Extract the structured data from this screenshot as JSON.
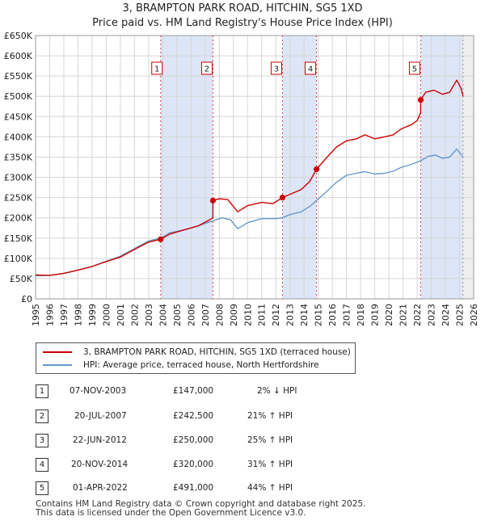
{
  "chart_data": {
    "type": "line",
    "title": "3, BRAMPTON PARK ROAD, HITCHIN, SG5 1XD",
    "subtitle": "Price paid vs. HM Land Registry's House Price Index (HPI)",
    "xlabel": "",
    "ylabel": "",
    "xlim": [
      1995,
      2026
    ],
    "ylim": [
      0,
      650000
    ],
    "x_ticks": [
      "1995",
      "1996",
      "1997",
      "1998",
      "1999",
      "2000",
      "2001",
      "2002",
      "2003",
      "2004",
      "2005",
      "2006",
      "2007",
      "2008",
      "2009",
      "2010",
      "2011",
      "2012",
      "2013",
      "2014",
      "2015",
      "2016",
      "2017",
      "2018",
      "2019",
      "2020",
      "2021",
      "2022",
      "2023",
      "2024",
      "2025",
      "2026"
    ],
    "y_ticks": [
      {
        "value": 0,
        "label": "£0"
      },
      {
        "value": 50000,
        "label": "£50K"
      },
      {
        "value": 100000,
        "label": "£100K"
      },
      {
        "value": 150000,
        "label": "£150K"
      },
      {
        "value": 200000,
        "label": "£200K"
      },
      {
        "value": 250000,
        "label": "£250K"
      },
      {
        "value": 300000,
        "label": "£300K"
      },
      {
        "value": 350000,
        "label": "£350K"
      },
      {
        "value": 400000,
        "label": "£400K"
      },
      {
        "value": 450000,
        "label": "£450K"
      },
      {
        "value": 500000,
        "label": "£500K"
      },
      {
        "value": 550000,
        "label": "£550K"
      },
      {
        "value": 600000,
        "label": "£600K"
      },
      {
        "value": 650000,
        "label": "£650K"
      }
    ],
    "grid": true,
    "future_shade_from": 2025.25,
    "series": [
      {
        "name": "3, BRAMPTON PARK ROAD, HITCHIN, SG5 1XD (terraced house)",
        "color": "#cc0000",
        "points": [
          [
            1995,
            59000
          ],
          [
            1996,
            58000
          ],
          [
            1997,
            63000
          ],
          [
            1998,
            71000
          ],
          [
            1999,
            80000
          ],
          [
            2000,
            92000
          ],
          [
            2001,
            103000
          ],
          [
            2002,
            122000
          ],
          [
            2003,
            140000
          ],
          [
            2003.85,
            147000
          ],
          [
            2004.5,
            160000
          ],
          [
            2005.5,
            170000
          ],
          [
            2006.5,
            180000
          ],
          [
            2007.3,
            195000
          ],
          [
            2007.55,
            200000
          ],
          [
            2007.55,
            242500
          ],
          [
            2008,
            247000
          ],
          [
            2008.6,
            245000
          ],
          [
            2009.3,
            215000
          ],
          [
            2010,
            230000
          ],
          [
            2011,
            238000
          ],
          [
            2011.8,
            235000
          ],
          [
            2012.47,
            250000
          ],
          [
            2013,
            258000
          ],
          [
            2013.8,
            270000
          ],
          [
            2014.4,
            290000
          ],
          [
            2014.88,
            320000
          ],
          [
            2015.5,
            345000
          ],
          [
            2016.3,
            375000
          ],
          [
            2017,
            390000
          ],
          [
            2017.7,
            395000
          ],
          [
            2018.3,
            405000
          ],
          [
            2019,
            395000
          ],
          [
            2019.7,
            400000
          ],
          [
            2020.3,
            405000
          ],
          [
            2020.9,
            420000
          ],
          [
            2021.6,
            430000
          ],
          [
            2022,
            440000
          ],
          [
            2022.25,
            460000
          ],
          [
            2022.25,
            491000
          ],
          [
            2022.6,
            510000
          ],
          [
            2023.2,
            515000
          ],
          [
            2023.8,
            505000
          ],
          [
            2024.3,
            510000
          ],
          [
            2024.8,
            540000
          ],
          [
            2025.1,
            520000
          ],
          [
            2025.25,
            500000
          ]
        ]
      },
      {
        "name": "HPI: Average price, terraced house, North Hertfordshire",
        "color": "#6699cc",
        "points": [
          [
            1995,
            57000
          ],
          [
            1996,
            58000
          ],
          [
            1997,
            63000
          ],
          [
            1998,
            71000
          ],
          [
            1999,
            80000
          ],
          [
            2000,
            93000
          ],
          [
            2001,
            105000
          ],
          [
            2002,
            124000
          ],
          [
            2003,
            143000
          ],
          [
            2003.85,
            150000
          ],
          [
            2004.5,
            163000
          ],
          [
            2005.5,
            170000
          ],
          [
            2006.5,
            180000
          ],
          [
            2007.5,
            192000
          ],
          [
            2008.2,
            200000
          ],
          [
            2008.8,
            195000
          ],
          [
            2009.3,
            173000
          ],
          [
            2010,
            188000
          ],
          [
            2011,
            198000
          ],
          [
            2012,
            198000
          ],
          [
            2012.47,
            200000
          ],
          [
            2013,
            208000
          ],
          [
            2013.8,
            215000
          ],
          [
            2014.4,
            228000
          ],
          [
            2014.88,
            243000
          ],
          [
            2015.5,
            262000
          ],
          [
            2016.3,
            288000
          ],
          [
            2017,
            305000
          ],
          [
            2017.7,
            310000
          ],
          [
            2018.3,
            314000
          ],
          [
            2019,
            308000
          ],
          [
            2019.7,
            310000
          ],
          [
            2020.3,
            315000
          ],
          [
            2020.9,
            325000
          ],
          [
            2021.6,
            332000
          ],
          [
            2022.25,
            341000
          ],
          [
            2022.8,
            352000
          ],
          [
            2023.3,
            355000
          ],
          [
            2023.8,
            347000
          ],
          [
            2024.3,
            350000
          ],
          [
            2024.8,
            370000
          ],
          [
            2025.25,
            350000
          ]
        ]
      }
    ],
    "sales": [
      {
        "num": "1",
        "x": 2003.85,
        "price": 147000,
        "date": "07-NOV-2003",
        "price_label": "£147,000",
        "hpi_label": "2% ↓ HPI"
      },
      {
        "num": "2",
        "x": 2007.55,
        "price": 242500,
        "date": "20-JUL-2007",
        "price_label": "£242,500",
        "hpi_label": "21% ↑ HPI"
      },
      {
        "num": "3",
        "x": 2012.47,
        "price": 250000,
        "date": "22-JUN-2012",
        "price_label": "£250,000",
        "hpi_label": "25% ↑ HPI"
      },
      {
        "num": "4",
        "x": 2014.88,
        "price": 320000,
        "date": "20-NOV-2014",
        "price_label": "£320,000",
        "hpi_label": "31% ↑ HPI"
      },
      {
        "num": "5",
        "x": 2022.25,
        "price": 491000,
        "date": "01-APR-2022",
        "price_label": "£491,000",
        "hpi_label": "44% ↑ HPI"
      }
    ],
    "shade_pairs": [
      [
        2003.85,
        2007.55
      ],
      [
        2012.47,
        2014.88
      ],
      [
        2022.25,
        2025.25
      ]
    ]
  },
  "legend": {
    "items": [
      {
        "label": "3, BRAMPTON PARK ROAD, HITCHIN, SG5 1XD (terraced house)",
        "color": "#cc0000"
      },
      {
        "label": "HPI: Average price, terraced house, North Hertfordshire",
        "color": "#6699cc"
      }
    ]
  },
  "footer": {
    "line1": "Contains HM Land Registry data © Crown copyright and database right 2025.",
    "line2": "This data is licensed under the Open Government Licence v3.0."
  }
}
